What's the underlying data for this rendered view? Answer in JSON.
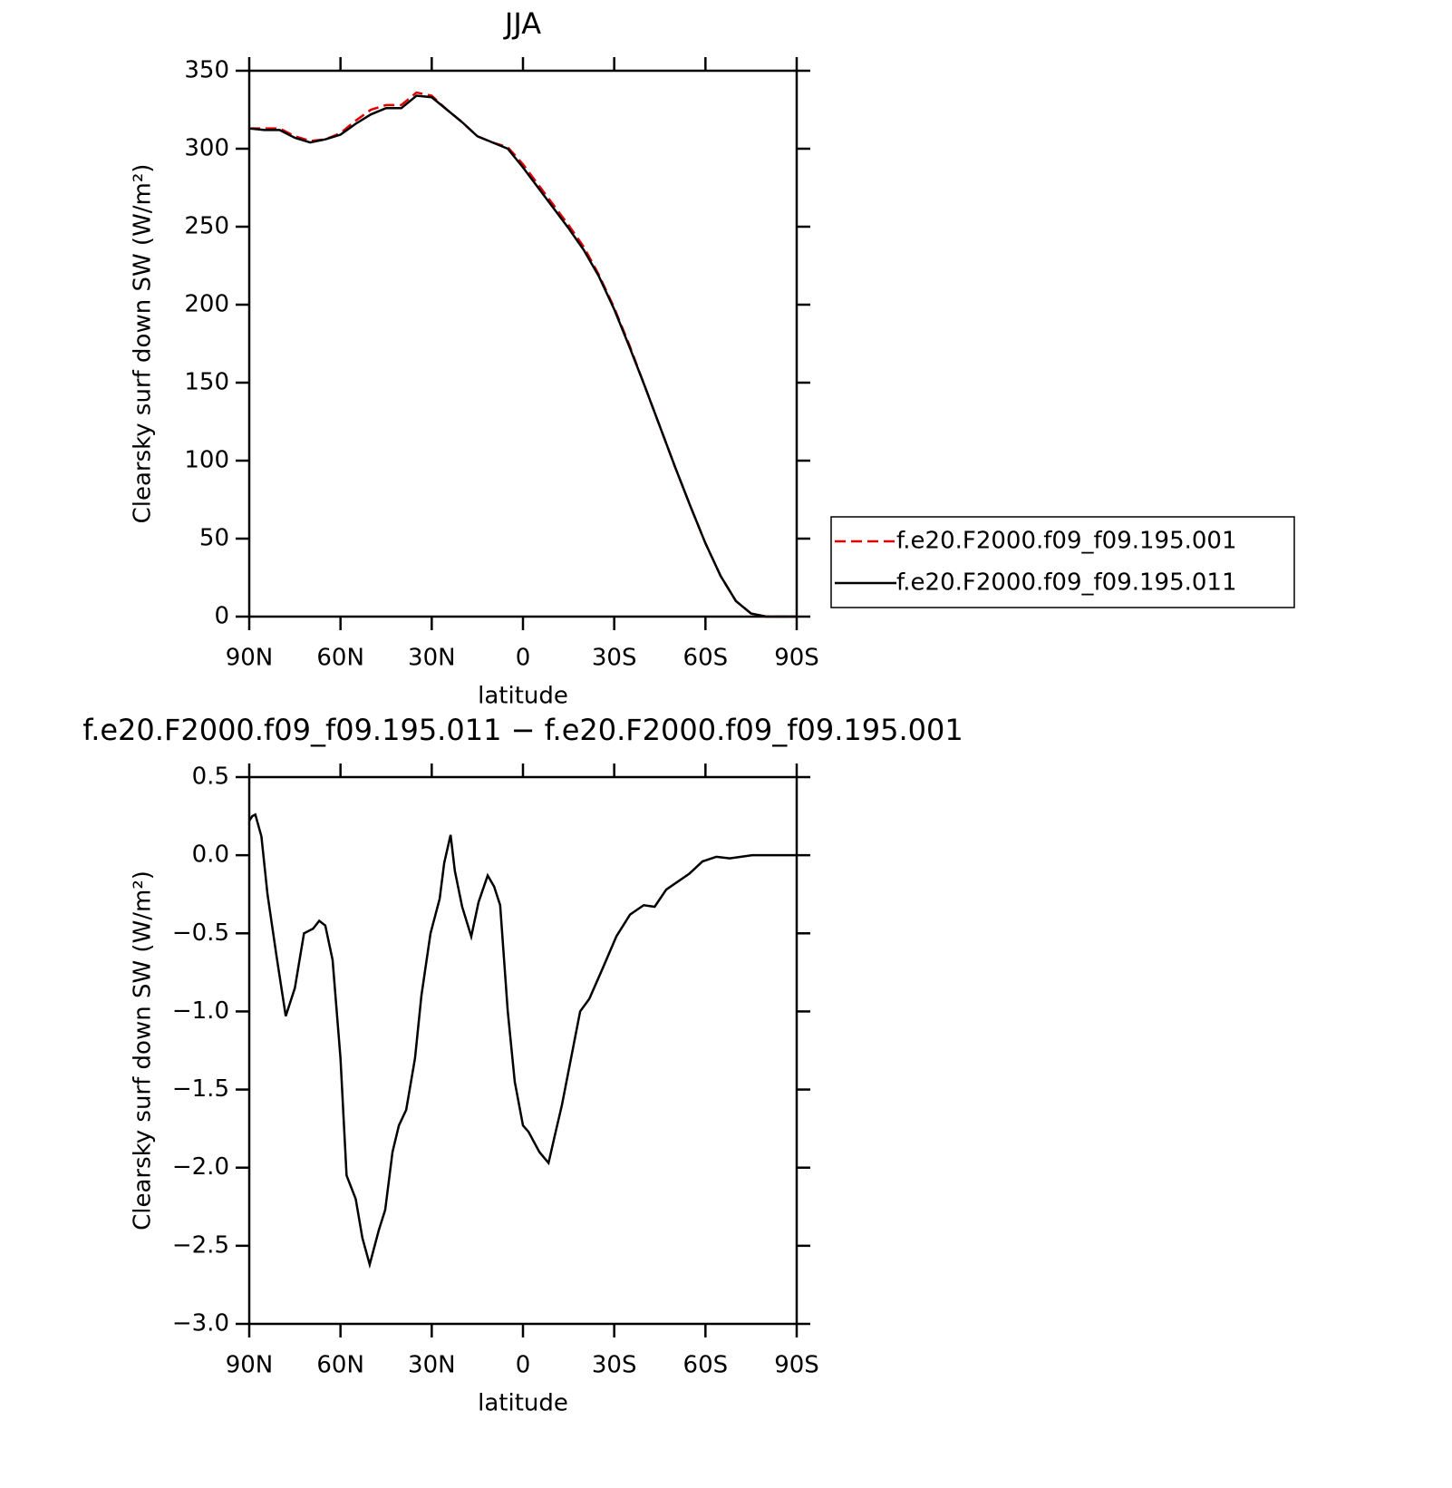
{
  "chart_data": [
    {
      "type": "line",
      "title": "JJA",
      "xlabel": "latitude",
      "ylabel": "Clearsky surf down SW (W/m²)",
      "x": [
        90,
        85,
        80,
        75,
        70,
        65,
        60,
        55,
        50,
        45,
        40,
        35,
        30,
        25,
        20,
        15,
        10,
        5,
        0,
        -5,
        -10,
        -15,
        -20,
        -25,
        -30,
        -35,
        -40,
        -45,
        -50,
        -55,
        -60,
        -65,
        -70,
        -75,
        -80,
        -85,
        -90
      ],
      "xlim": [
        90,
        -90
      ],
      "xticks": [
        {
          "value": 90,
          "label": "90N"
        },
        {
          "value": 60,
          "label": "60N"
        },
        {
          "value": 30,
          "label": "30N"
        },
        0,
        {
          "value": -30,
          "label": "30S"
        },
        {
          "value": -60,
          "label": "60S"
        },
        {
          "value": -90,
          "label": "90S"
        }
      ],
      "ylim": [
        0,
        350
      ],
      "yticks": [
        0,
        50,
        100,
        150,
        200,
        250,
        300,
        350
      ],
      "legend": "right",
      "series": [
        {
          "name": "f.e20.F2000.f09_f09.195.001",
          "color": "#e00000",
          "dash": true,
          "values": [
            313,
            313,
            313,
            308,
            305,
            306,
            310,
            318,
            325,
            328,
            328,
            336,
            334,
            325,
            317,
            308,
            304,
            301,
            290,
            277,
            264,
            251,
            237,
            219,
            198,
            174,
            148,
            122,
            96,
            71,
            47,
            26,
            10,
            2,
            0,
            0,
            0
          ]
        },
        {
          "name": "f.e20.F2000.f09_f09.195.011",
          "color": "#000000",
          "dash": false,
          "values": [
            313,
            312,
            312,
            307,
            304,
            306,
            309,
            316,
            322,
            326,
            326,
            334,
            333,
            325,
            317,
            308,
            304,
            300,
            288,
            275,
            262,
            249,
            235,
            218,
            197,
            173,
            148,
            122,
            96,
            71,
            47,
            26,
            10,
            2,
            0,
            0,
            0
          ]
        }
      ]
    },
    {
      "type": "line",
      "title": "f.e20.F2000.f09_f09.195.011 − f.e20.F2000.f09_f09.195.001",
      "xlabel": "latitude",
      "ylabel": "Clearsky surf down SW (W/m²)",
      "x": [
        90,
        89,
        88,
        86,
        84,
        82.5,
        81,
        78,
        75,
        72,
        69,
        67,
        65,
        62.6,
        60,
        58,
        55,
        52.8,
        50.4,
        47.4,
        45.3,
        42.9,
        40.8,
        38.4,
        35.5,
        33.4,
        30.4,
        27.4,
        25.9,
        23.8,
        22.4,
        20,
        17,
        14.6,
        11.6,
        9.5,
        7.5,
        5,
        2.7,
        0,
        -1.8,
        -5.4,
        -8.4,
        -10.4,
        -12.8,
        -15.8,
        -18.8,
        -21.8,
        -26.3,
        -30.7,
        -35.2,
        -39.7,
        -43.3,
        -47.1,
        -54.6,
        -59,
        -63.6,
        -68,
        -75.4,
        -90
      ],
      "xlim": [
        90,
        -90
      ],
      "xticks": [
        {
          "value": 90,
          "label": "90N"
        },
        {
          "value": 60,
          "label": "60N"
        },
        {
          "value": 30,
          "label": "30N"
        },
        0,
        {
          "value": -30,
          "label": "30S"
        },
        {
          "value": -60,
          "label": "60S"
        },
        {
          "value": -90,
          "label": "90S"
        }
      ],
      "ylim": [
        -3,
        0.5
      ],
      "yticks": [
        0.5,
        {
          "value": 0,
          "label": "0.0"
        },
        {
          "value": -0.5,
          "label": "−0.5"
        },
        {
          "value": -1,
          "label": "−1.0"
        },
        {
          "value": -1.5,
          "label": "−1.5"
        },
        {
          "value": -2,
          "label": "−2.0"
        },
        {
          "value": -2.5,
          "label": "−2.5"
        },
        {
          "value": -3,
          "label": "−3.0"
        }
      ],
      "series": [
        {
          "color": "#000000",
          "dash": false,
          "values": [
            0.22,
            0.25,
            0.26,
            0.12,
            -0.25,
            -0.45,
            -0.65,
            -1.03,
            -0.85,
            -0.5,
            -0.47,
            -0.42,
            -0.45,
            -0.67,
            -1.3,
            -2.05,
            -2.2,
            -2.45,
            -2.62,
            -2.4,
            -2.27,
            -1.9,
            -1.73,
            -1.63,
            -1.3,
            -0.9,
            -0.5,
            -0.28,
            -0.05,
            0.13,
            -0.1,
            -0.33,
            -0.52,
            -0.3,
            -0.13,
            -0.2,
            -0.32,
            -1.0,
            -1.45,
            -1.73,
            -1.77,
            -1.9,
            -1.97,
            -1.8,
            -1.6,
            -1.3,
            -1.0,
            -0.92,
            -0.72,
            -0.52,
            -0.38,
            -0.32,
            -0.33,
            -0.22,
            -0.12,
            -0.04,
            -0.01,
            -0.02,
            0,
            0
          ]
        }
      ]
    }
  ]
}
